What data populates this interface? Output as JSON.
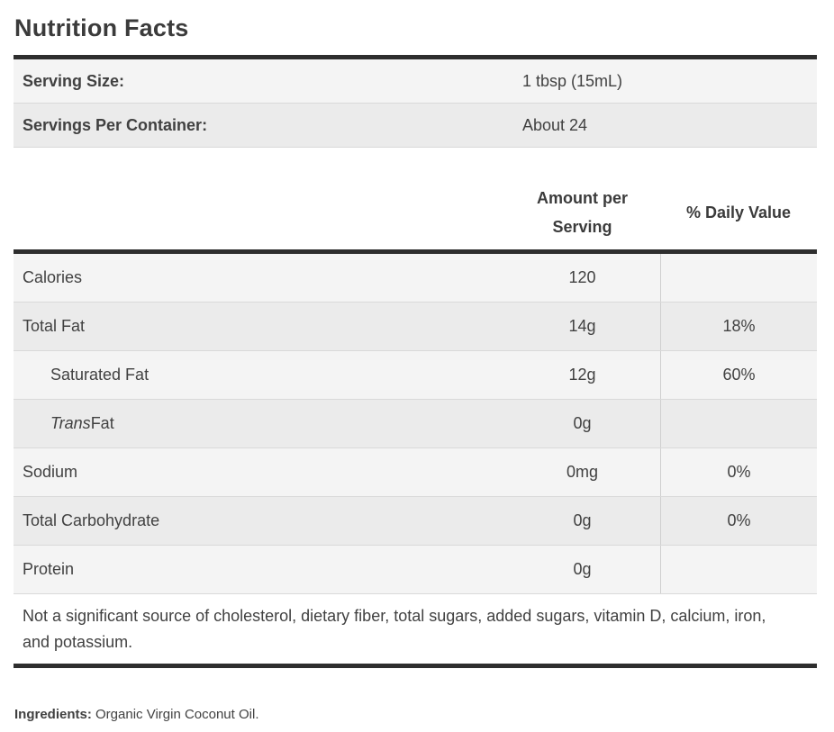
{
  "title": "Nutrition Facts",
  "colors": {
    "rule_dark": "#2e2e2e",
    "row_stripe_light": "#f4f4f4",
    "row_stripe_dark": "#ebebeb",
    "row_separator": "#d9d9d9",
    "column_divider": "#cfcfcf",
    "text": "#414141"
  },
  "serving_table": {
    "rows": [
      {
        "label": "Serving Size:",
        "value": "1 tbsp (15mL)"
      },
      {
        "label": "Servings Per Container:",
        "value": "About 24"
      }
    ]
  },
  "nutrient_table": {
    "header": {
      "amount": "Amount per Serving",
      "daily_value": "% Daily Value"
    },
    "rows": [
      {
        "label": "Calories",
        "amount": "120",
        "daily_value": ""
      },
      {
        "label": "Total Fat",
        "amount": "14g",
        "daily_value": "18%"
      },
      {
        "label": "Saturated Fat",
        "amount": "12g",
        "daily_value": "60%"
      },
      {
        "label_italic": "Trans",
        "label": " Fat",
        "amount": "0g",
        "daily_value": ""
      },
      {
        "label": "Sodium",
        "amount": "0mg",
        "daily_value": "0%"
      },
      {
        "label": "Total Carbohydrate",
        "amount": "0g",
        "daily_value": "0%"
      },
      {
        "label": "Protein",
        "amount": "0g",
        "daily_value": ""
      }
    ],
    "footnote": "Not a significant source of cholesterol, dietary fiber, total sugars, added sugars, vitamin D, calcium, iron, and potassium."
  },
  "ingredients": {
    "label": "Ingredients:",
    "value": "Organic Virgin Coconut Oil."
  }
}
